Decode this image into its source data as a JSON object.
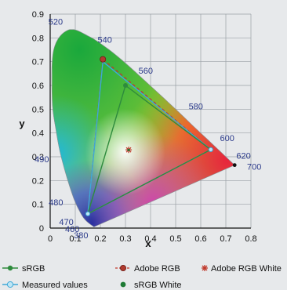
{
  "chart_data": {
    "type": "scatter",
    "title": "",
    "xlabel": "x",
    "ylabel": "y",
    "xlim": [
      0,
      0.8
    ],
    "ylim": [
      0,
      0.9
    ],
    "x_ticks": [
      0,
      0.1,
      0.2,
      0.3,
      0.4,
      0.5,
      0.6,
      0.7,
      0.8
    ],
    "y_ticks": [
      0,
      0.1,
      0.2,
      0.3,
      0.4,
      0.5,
      0.6,
      0.7,
      0.8,
      0.9
    ],
    "x_tick_labels": [
      "0",
      "0.1",
      "0.2",
      "0.3",
      "0.4",
      "0.5",
      "0.6",
      "0.7",
      "0.8"
    ],
    "y_tick_labels": [
      "0",
      "0.1",
      "0.2",
      "0.3",
      "0.4",
      "0.5",
      "0.6",
      "0.7",
      "0.8",
      "0.9"
    ],
    "grid": true,
    "legend_position": "bottom",
    "spectral_locus": [
      {
        "x": 0.174,
        "y": 0.005
      },
      {
        "x": 0.144,
        "y": 0.03
      },
      {
        "x": 0.124,
        "y": 0.058
      },
      {
        "x": 0.091,
        "y": 0.133
      },
      {
        "x": 0.045,
        "y": 0.295
      },
      {
        "x": 0.023,
        "y": 0.413
      },
      {
        "x": 0.008,
        "y": 0.538
      },
      {
        "x": 0.014,
        "y": 0.75
      },
      {
        "x": 0.074,
        "y": 0.834
      },
      {
        "x": 0.155,
        "y": 0.806
      },
      {
        "x": 0.23,
        "y": 0.754
      },
      {
        "x": 0.302,
        "y": 0.692
      },
      {
        "x": 0.373,
        "y": 0.624
      },
      {
        "x": 0.444,
        "y": 0.555
      },
      {
        "x": 0.513,
        "y": 0.487
      },
      {
        "x": 0.575,
        "y": 0.424
      },
      {
        "x": 0.627,
        "y": 0.373
      },
      {
        "x": 0.666,
        "y": 0.334
      },
      {
        "x": 0.692,
        "y": 0.308
      },
      {
        "x": 0.735,
        "y": 0.265
      }
    ],
    "wavelength_labels": [
      {
        "label": "380",
        "x": 0.174,
        "y": 0.005
      },
      {
        "label": "460",
        "x": 0.144,
        "y": 0.03
      },
      {
        "label": "470",
        "x": 0.124,
        "y": 0.058
      },
      {
        "label": "480",
        "x": 0.091,
        "y": 0.133
      },
      {
        "label": "490",
        "x": 0.045,
        "y": 0.295
      },
      {
        "label": "520",
        "x": 0.074,
        "y": 0.834
      },
      {
        "label": "540",
        "x": 0.23,
        "y": 0.754
      },
      {
        "label": "560",
        "x": 0.373,
        "y": 0.624
      },
      {
        "label": "580",
        "x": 0.513,
        "y": 0.487
      },
      {
        "label": "600",
        "x": 0.627,
        "y": 0.373
      },
      {
        "label": "620",
        "x": 0.692,
        "y": 0.308
      },
      {
        "label": "700",
        "x": 0.735,
        "y": 0.265
      }
    ],
    "series": [
      {
        "name": "sRGB",
        "color": "#2e8b3d",
        "style": "solid",
        "points": [
          {
            "x": 0.64,
            "y": 0.33
          },
          {
            "x": 0.3,
            "y": 0.6
          },
          {
            "x": 0.15,
            "y": 0.06
          }
        ]
      },
      {
        "name": "Adobe RGB",
        "color": "#c0392b",
        "style": "dashed",
        "points": [
          {
            "x": 0.64,
            "y": 0.33
          },
          {
            "x": 0.21,
            "y": 0.71
          },
          {
            "x": 0.15,
            "y": 0.06
          }
        ]
      },
      {
        "name": "Measured values",
        "color": "#3ea8d8",
        "style": "solid",
        "points": [
          {
            "x": 0.64,
            "y": 0.33
          },
          {
            "x": 0.21,
            "y": 0.7
          },
          {
            "x": 0.15,
            "y": 0.06
          }
        ]
      }
    ],
    "white_points": [
      {
        "name": "Adobe RGB White",
        "color": "#c0392b",
        "marker": "asterisk",
        "x": 0.3127,
        "y": 0.329
      },
      {
        "name": "sRGB White",
        "color": "#1e7a35",
        "marker": "dot",
        "x": 0.3127,
        "y": 0.329
      }
    ]
  },
  "legend": {
    "srgb": "sRGB",
    "adobe_rgb": "Adobe RGB",
    "adobe_rgb_white": "Adobe RGB White",
    "measured": "Measured values",
    "srgb_white": "sRGB White"
  },
  "colors": {
    "background": "#e7e9eb",
    "grid": "#9aa0a6",
    "axis": "#111111",
    "wavelength_text": "#2b3a8a"
  }
}
